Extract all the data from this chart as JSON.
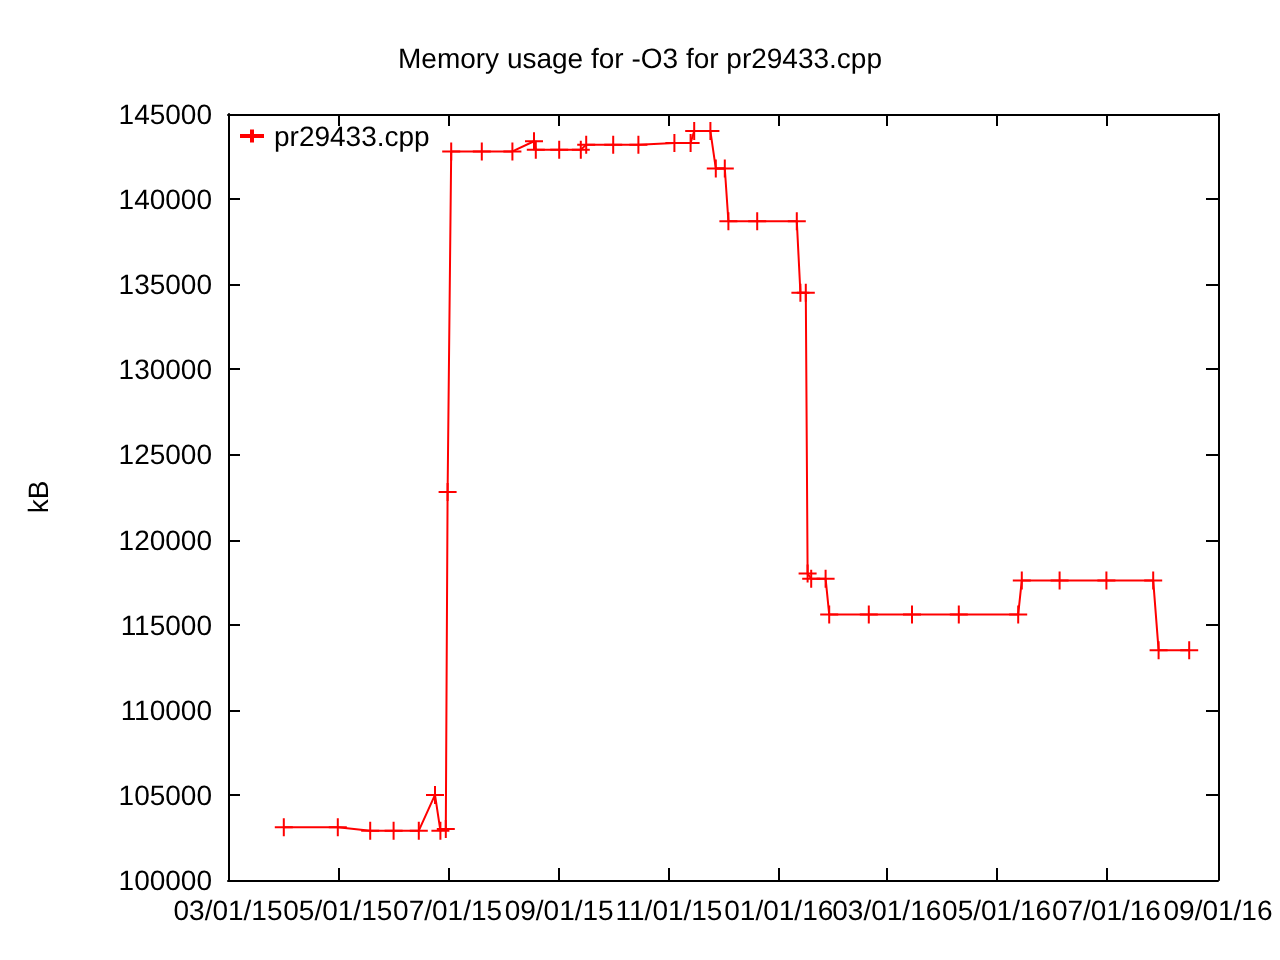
{
  "chart_data": {
    "type": "line",
    "title": "Memory usage for -O3 for pr29433.cpp",
    "ylabel": "kB",
    "x": [
      "2015-04-01",
      "2015-05-01",
      "2015-05-19",
      "2015-06-01",
      "2015-06-15",
      "2015-06-24",
      "2015-06-27",
      "2015-06-30",
      "2015-07-01",
      "2015-07-03",
      "2015-07-20",
      "2015-08-06",
      "2015-08-18",
      "2015-08-19",
      "2015-09-01",
      "2015-09-13",
      "2015-09-16",
      "2015-10-01",
      "2015-10-15",
      "2015-11-04",
      "2015-11-13",
      "2015-11-15",
      "2015-11-24",
      "2015-11-27",
      "2015-12-02",
      "2015-12-04",
      "2015-12-20",
      "2016-01-11",
      "2016-01-13",
      "2016-01-16",
      "2016-01-17",
      "2016-01-19",
      "2016-01-27",
      "2016-01-29",
      "2016-02-20",
      "2016-03-15",
      "2016-04-10",
      "2016-05-13",
      "2016-05-15",
      "2016-06-05",
      "2016-07-01",
      "2016-07-27",
      "2016-07-30",
      "2016-08-16"
    ],
    "series": [
      {
        "name": "pr29433.cpp",
        "color": "#ff0000",
        "values": [
          103100,
          103100,
          102900,
          102900,
          102900,
          105000,
          102900,
          103000,
          122800,
          142800,
          142800,
          142800,
          143400,
          142900,
          142900,
          142900,
          143200,
          143200,
          143200,
          143300,
          143300,
          144000,
          144000,
          141800,
          141800,
          138700,
          138700,
          138700,
          134500,
          134500,
          118000,
          117700,
          117700,
          115600,
          115600,
          115600,
          115600,
          115600,
          117600,
          117600,
          117600,
          117600,
          113500,
          113500
        ]
      }
    ],
    "xlim": [
      "2015-03-01",
      "2016-09-01"
    ],
    "xticks": [
      {
        "value": "2015-03-01",
        "label": "03/01/15"
      },
      {
        "value": "2015-05-01",
        "label": "05/01/15"
      },
      {
        "value": "2015-07-01",
        "label": "07/01/15"
      },
      {
        "value": "2015-09-01",
        "label": "09/01/15"
      },
      {
        "value": "2015-11-01",
        "label": "11/01/15"
      },
      {
        "value": "2016-01-01",
        "label": "01/01/16"
      },
      {
        "value": "2016-03-01",
        "label": "03/01/16"
      },
      {
        "value": "2016-05-01",
        "label": "05/01/16"
      },
      {
        "value": "2016-07-01",
        "label": "07/01/16"
      },
      {
        "value": "2016-09-01",
        "label": "09/01/16"
      }
    ],
    "ylim": [
      100000,
      145000
    ],
    "yticks": [
      100000,
      105000,
      110000,
      115000,
      120000,
      125000,
      130000,
      135000,
      140000,
      145000
    ],
    "legend": "top left",
    "marker": "cross",
    "line_style": "solid",
    "grid": false
  }
}
